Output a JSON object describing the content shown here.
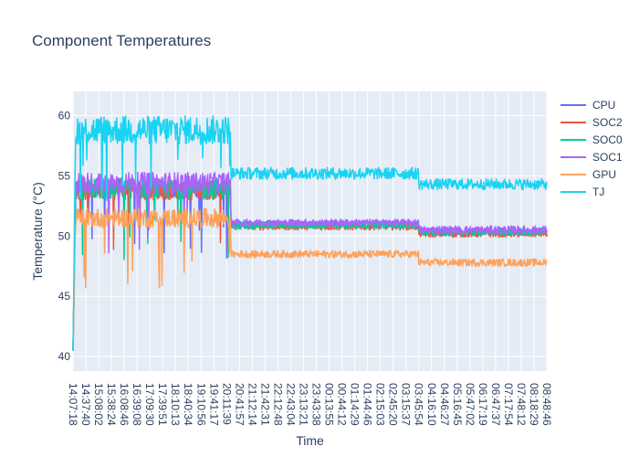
{
  "chart_data": {
    "type": "line",
    "title": "Component Temperatures",
    "xlabel": "Time",
    "ylabel": "Temperature (°C)",
    "ylim": [
      38.8,
      62.0
    ],
    "yticks": [
      40,
      45,
      50,
      55,
      60
    ],
    "grid": true,
    "legend_position": "right",
    "background": "#E5ECF6",
    "xticks": [
      "14:07:18",
      "14:37:40",
      "15:08:02",
      "15:38:24",
      "16:08:46",
      "16:39:08",
      "17:09:30",
      "17:39:51",
      "18:10:13",
      "18:40:34",
      "19:10:56",
      "19:41:17",
      "20:11:39",
      "20:41:57",
      "21:12:14",
      "21:42:31",
      "22:12:48",
      "22:43:04",
      "23:13:21",
      "23:43:38",
      "00:13:55",
      "00:44:12",
      "01:14:29",
      "01:44:46",
      "02:15:03",
      "02:45:20",
      "03:15:37",
      "03:45:54",
      "04:16:10",
      "04:46:27",
      "05:16:45",
      "05:47:02",
      "06:17:19",
      "06:47:37",
      "07:17:54",
      "07:48:12",
      "08:18:29",
      "08:48:46"
    ],
    "series": [
      {
        "name": "CPU",
        "color": "#636EFA",
        "phases": [
          {
            "start": 0,
            "end": 12.3,
            "value": 54.0,
            "noise": 0.8
          },
          {
            "start": 12.3,
            "end": 27.0,
            "value": 51.0,
            "noise": 0.3
          },
          {
            "start": 27.0,
            "end": 38,
            "value": 50.4,
            "noise": 0.3
          }
        ]
      },
      {
        "name": "SOC2",
        "color": "#EF553B",
        "phases": [
          {
            "start": 0,
            "end": 12.3,
            "value": 53.8,
            "noise": 0.8
          },
          {
            "start": 12.3,
            "end": 27.0,
            "value": 50.8,
            "noise": 0.3
          },
          {
            "start": 27.0,
            "end": 38,
            "value": 50.2,
            "noise": 0.3
          }
        ]
      },
      {
        "name": "SOC0",
        "color": "#00CC96",
        "phases": [
          {
            "start": 0,
            "end": 12.3,
            "value": 53.9,
            "noise": 0.8
          },
          {
            "start": 12.3,
            "end": 27.0,
            "value": 50.9,
            "noise": 0.3
          },
          {
            "start": 27.0,
            "end": 38,
            "value": 50.3,
            "noise": 0.3
          }
        ]
      },
      {
        "name": "SOC1",
        "color": "#AB63FA",
        "phases": [
          {
            "start": 0,
            "end": 12.3,
            "value": 54.4,
            "noise": 0.9
          },
          {
            "start": 12.3,
            "end": 27.0,
            "value": 51.1,
            "noise": 0.3
          },
          {
            "start": 27.0,
            "end": 38,
            "value": 50.5,
            "noise": 0.35
          }
        ]
      },
      {
        "name": "GPU",
        "color": "#FFA15A",
        "phases": [
          {
            "start": 0,
            "end": 12.3,
            "value": 51.5,
            "noise": 0.8
          },
          {
            "start": 12.3,
            "end": 27.0,
            "value": 48.5,
            "noise": 0.3
          },
          {
            "start": 27.0,
            "end": 38,
            "value": 47.8,
            "noise": 0.3
          }
        ]
      },
      {
        "name": "TJ",
        "color": "#19D3F3",
        "phases": [
          {
            "start": 0,
            "end": 12.3,
            "value": 58.8,
            "noise": 1.2
          },
          {
            "start": 12.3,
            "end": 27.0,
            "value": 55.2,
            "noise": 0.5
          },
          {
            "start": 27.0,
            "end": 38,
            "value": 54.3,
            "noise": 0.45
          }
        ]
      }
    ]
  }
}
